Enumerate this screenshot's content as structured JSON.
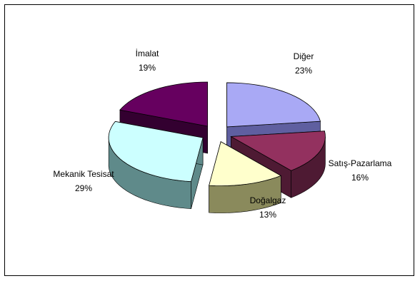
{
  "chart_data": {
    "type": "pie",
    "style": "3d-exploded",
    "title": "",
    "slices": [
      {
        "label": "Diğer",
        "value": 23,
        "value_label": "23%",
        "color": "#a9a9f5",
        "side_color": "#5f5fa0"
      },
      {
        "label": "Satış-Pazarlama",
        "value": 16,
        "value_label": "16%",
        "color": "#93315f",
        "side_color": "#4e1a33"
      },
      {
        "label": "Doğalgaz",
        "value": 13,
        "value_label": "13%",
        "color": "#ffffcc",
        "side_color": "#8a8a5c"
      },
      {
        "label": "Mekanik Tesisat",
        "value": 29,
        "value_label": "29%",
        "color": "#ccffff",
        "side_color": "#5f8a8a"
      },
      {
        "label": "İmalat",
        "value": 19,
        "value_label": "19%",
        "color": "#66005f",
        "side_color": "#330030"
      }
    ],
    "legend": "none",
    "grid": false
  }
}
